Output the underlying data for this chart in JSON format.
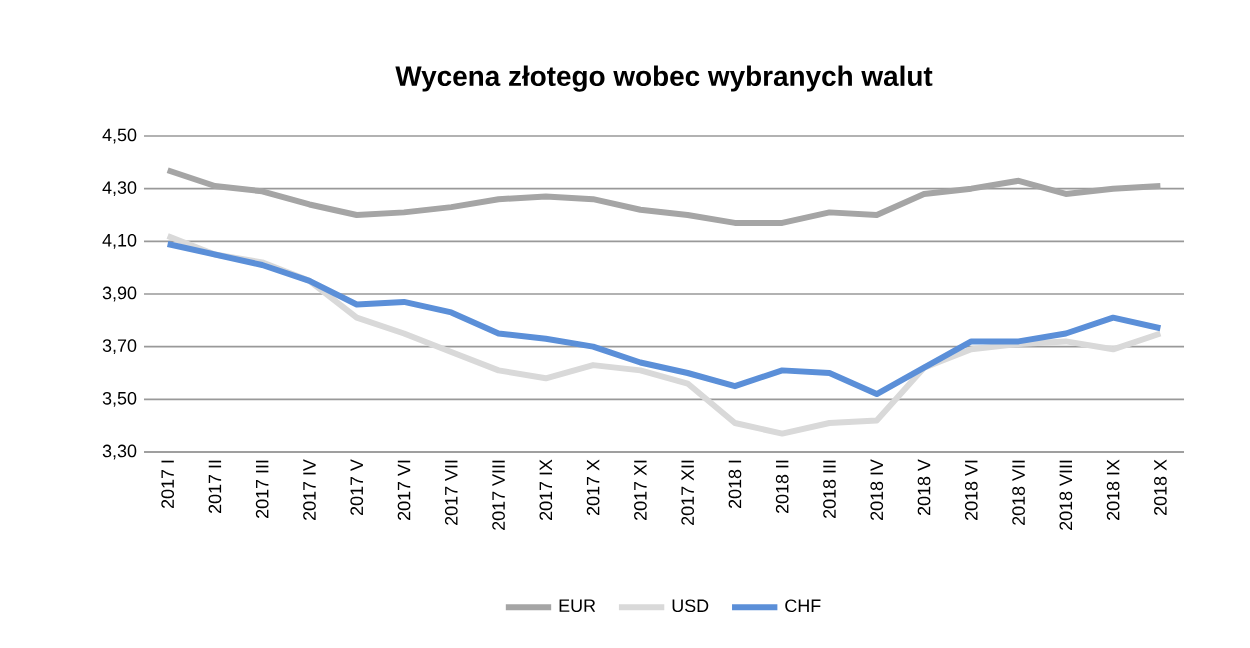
{
  "chart_data": {
    "type": "line",
    "title": "Wycena złotego wobec wybranych walut",
    "categories": [
      "2017 I",
      "2017 II",
      "2017 III",
      "2017 IV",
      "2017 V",
      "2017 VI",
      "2017 VII",
      "2017 VIII",
      "2017 IX",
      "2017 X",
      "2017 XI",
      "2017 XII",
      "2018 I",
      "2018 II",
      "2018 III",
      "2018 IV",
      "2018 V",
      "2018 VI",
      "2018 VII",
      "2018 VIII",
      "2018 IX",
      "2018 X"
    ],
    "series": [
      {
        "name": "EUR",
        "color": "#a5a5a5",
        "values": [
          4.37,
          4.31,
          4.29,
          4.24,
          4.2,
          4.21,
          4.23,
          4.26,
          4.27,
          4.26,
          4.22,
          4.2,
          4.17,
          4.17,
          4.21,
          4.2,
          4.28,
          4.3,
          4.33,
          4.28,
          4.3,
          4.31
        ]
      },
      {
        "name": "USD",
        "color": "#d9d9d9",
        "values": [
          4.12,
          4.05,
          4.02,
          3.95,
          3.81,
          3.75,
          3.68,
          3.61,
          3.58,
          3.63,
          3.61,
          3.56,
          3.41,
          3.37,
          3.41,
          3.42,
          3.62,
          3.69,
          3.71,
          3.72,
          3.69,
          3.75
        ]
      },
      {
        "name": "CHF",
        "color": "#5b8fd8",
        "values": [
          4.09,
          4.05,
          4.01,
          3.95,
          3.86,
          3.87,
          3.83,
          3.75,
          3.73,
          3.7,
          3.64,
          3.6,
          3.55,
          3.61,
          3.6,
          3.52,
          3.62,
          3.72,
          3.72,
          3.75,
          3.81,
          3.77
        ]
      }
    ],
    "ylim": [
      3.3,
      4.5
    ],
    "yticks": [
      {
        "value": 3.3,
        "label": "3,30"
      },
      {
        "value": 3.5,
        "label": "3,50"
      },
      {
        "value": 3.7,
        "label": "3,70"
      },
      {
        "value": 3.9,
        "label": "3,90"
      },
      {
        "value": 4.1,
        "label": "4,10"
      },
      {
        "value": 4.3,
        "label": "4,30"
      },
      {
        "value": 4.5,
        "label": "4,50"
      }
    ],
    "grid": "y",
    "legend": "bottom",
    "marker": "none",
    "line_style": "solid"
  }
}
